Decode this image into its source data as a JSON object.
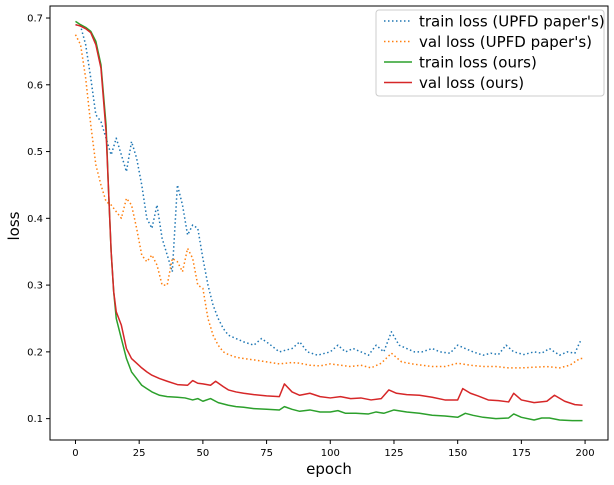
{
  "chart_data": {
    "type": "line",
    "title": "",
    "xlabel": "epoch",
    "ylabel": "loss",
    "xlim": [
      -10,
      209
    ],
    "ylim": [
      0.068,
      0.718
    ],
    "xticks": [
      0,
      25,
      50,
      75,
      100,
      125,
      150,
      175,
      200
    ],
    "yticks": [
      0.1,
      0.2,
      0.3,
      0.4,
      0.5,
      0.6,
      0.7
    ],
    "grid": false,
    "legend_position": "top-right",
    "series": [
      {
        "name": "train loss (UPFD paper's)",
        "color": "#1f77b4",
        "style": "dotted",
        "points": [
          [
            0,
            0.69
          ],
          [
            2,
            0.688
          ],
          [
            4,
            0.66
          ],
          [
            6,
            0.61
          ],
          [
            8,
            0.555
          ],
          [
            10,
            0.545
          ],
          [
            12,
            0.52
          ],
          [
            14,
            0.495
          ],
          [
            16,
            0.52
          ],
          [
            18,
            0.495
          ],
          [
            20,
            0.47
          ],
          [
            22,
            0.515
          ],
          [
            24,
            0.49
          ],
          [
            26,
            0.45
          ],
          [
            28,
            0.4
          ],
          [
            30,
            0.385
          ],
          [
            32,
            0.42
          ],
          [
            34,
            0.37
          ],
          [
            36,
            0.345
          ],
          [
            38,
            0.32
          ],
          [
            40,
            0.45
          ],
          [
            42,
            0.42
          ],
          [
            44,
            0.375
          ],
          [
            46,
            0.39
          ],
          [
            48,
            0.385
          ],
          [
            50,
            0.34
          ],
          [
            52,
            0.3
          ],
          [
            54,
            0.27
          ],
          [
            56,
            0.25
          ],
          [
            58,
            0.235
          ],
          [
            60,
            0.225
          ],
          [
            63,
            0.22
          ],
          [
            66,
            0.215
          ],
          [
            70,
            0.21
          ],
          [
            73,
            0.22
          ],
          [
            76,
            0.212
          ],
          [
            80,
            0.2
          ],
          [
            85,
            0.205
          ],
          [
            88,
            0.215
          ],
          [
            91,
            0.2
          ],
          [
            95,
            0.195
          ],
          [
            100,
            0.2
          ],
          [
            103,
            0.21
          ],
          [
            106,
            0.2
          ],
          [
            109,
            0.205
          ],
          [
            112,
            0.2
          ],
          [
            115,
            0.195
          ],
          [
            118,
            0.21
          ],
          [
            121,
            0.2
          ],
          [
            124,
            0.23
          ],
          [
            127,
            0.21
          ],
          [
            130,
            0.205
          ],
          [
            133,
            0.2
          ],
          [
            136,
            0.2
          ],
          [
            140,
            0.205
          ],
          [
            143,
            0.2
          ],
          [
            147,
            0.198
          ],
          [
            150,
            0.21
          ],
          [
            153,
            0.205
          ],
          [
            156,
            0.2
          ],
          [
            160,
            0.195
          ],
          [
            163,
            0.198
          ],
          [
            166,
            0.196
          ],
          [
            169,
            0.21
          ],
          [
            172,
            0.2
          ],
          [
            176,
            0.196
          ],
          [
            180,
            0.2
          ],
          [
            183,
            0.198
          ],
          [
            186,
            0.205
          ],
          [
            190,
            0.195
          ],
          [
            193,
            0.2
          ],
          [
            196,
            0.198
          ],
          [
            198,
            0.215
          ],
          [
            199,
            0.215
          ]
        ]
      },
      {
        "name": "val loss (UPFD paper's)",
        "color": "#ff7f0e",
        "style": "dotted",
        "points": [
          [
            0,
            0.675
          ],
          [
            2,
            0.66
          ],
          [
            4,
            0.61
          ],
          [
            6,
            0.54
          ],
          [
            8,
            0.48
          ],
          [
            10,
            0.45
          ],
          [
            12,
            0.425
          ],
          [
            14,
            0.42
          ],
          [
            16,
            0.41
          ],
          [
            18,
            0.4
          ],
          [
            20,
            0.43
          ],
          [
            22,
            0.42
          ],
          [
            24,
            0.385
          ],
          [
            26,
            0.345
          ],
          [
            28,
            0.335
          ],
          [
            30,
            0.345
          ],
          [
            32,
            0.33
          ],
          [
            34,
            0.3
          ],
          [
            36,
            0.3
          ],
          [
            38,
            0.34
          ],
          [
            40,
            0.335
          ],
          [
            42,
            0.32
          ],
          [
            44,
            0.355
          ],
          [
            46,
            0.34
          ],
          [
            48,
            0.3
          ],
          [
            50,
            0.295
          ],
          [
            52,
            0.25
          ],
          [
            54,
            0.225
          ],
          [
            56,
            0.21
          ],
          [
            58,
            0.2
          ],
          [
            60,
            0.196
          ],
          [
            63,
            0.192
          ],
          [
            66,
            0.19
          ],
          [
            70,
            0.188
          ],
          [
            75,
            0.185
          ],
          [
            80,
            0.182
          ],
          [
            85,
            0.184
          ],
          [
            88,
            0.183
          ],
          [
            92,
            0.18
          ],
          [
            96,
            0.179
          ],
          [
            100,
            0.182
          ],
          [
            104,
            0.18
          ],
          [
            108,
            0.178
          ],
          [
            112,
            0.18
          ],
          [
            116,
            0.176
          ],
          [
            120,
            0.183
          ],
          [
            124,
            0.198
          ],
          [
            128,
            0.185
          ],
          [
            132,
            0.182
          ],
          [
            136,
            0.18
          ],
          [
            140,
            0.178
          ],
          [
            145,
            0.178
          ],
          [
            150,
            0.183
          ],
          [
            155,
            0.18
          ],
          [
            160,
            0.178
          ],
          [
            165,
            0.178
          ],
          [
            170,
            0.176
          ],
          [
            175,
            0.176
          ],
          [
            180,
            0.177
          ],
          [
            185,
            0.178
          ],
          [
            190,
            0.176
          ],
          [
            194,
            0.18
          ],
          [
            198,
            0.19
          ],
          [
            199,
            0.19
          ]
        ]
      },
      {
        "name": "train loss (ours)",
        "color": "#2ca02c",
        "style": "solid",
        "points": [
          [
            0,
            0.695
          ],
          [
            2,
            0.69
          ],
          [
            4,
            0.686
          ],
          [
            6,
            0.68
          ],
          [
            8,
            0.665
          ],
          [
            10,
            0.63
          ],
          [
            12,
            0.54
          ],
          [
            13,
            0.44
          ],
          [
            14,
            0.35
          ],
          [
            15,
            0.29
          ],
          [
            16,
            0.25
          ],
          [
            18,
            0.22
          ],
          [
            20,
            0.19
          ],
          [
            22,
            0.17
          ],
          [
            24,
            0.16
          ],
          [
            26,
            0.15
          ],
          [
            28,
            0.145
          ],
          [
            30,
            0.14
          ],
          [
            33,
            0.135
          ],
          [
            36,
            0.133
          ],
          [
            40,
            0.132
          ],
          [
            43,
            0.131
          ],
          [
            46,
            0.128
          ],
          [
            48,
            0.13
          ],
          [
            50,
            0.126
          ],
          [
            53,
            0.13
          ],
          [
            56,
            0.124
          ],
          [
            60,
            0.12
          ],
          [
            63,
            0.118
          ],
          [
            66,
            0.117
          ],
          [
            70,
            0.115
          ],
          [
            75,
            0.114
          ],
          [
            80,
            0.113
          ],
          [
            82,
            0.118
          ],
          [
            85,
            0.114
          ],
          [
            88,
            0.111
          ],
          [
            92,
            0.113
          ],
          [
            96,
            0.11
          ],
          [
            100,
            0.11
          ],
          [
            103,
            0.112
          ],
          [
            106,
            0.108
          ],
          [
            110,
            0.108
          ],
          [
            115,
            0.107
          ],
          [
            118,
            0.11
          ],
          [
            121,
            0.108
          ],
          [
            125,
            0.113
          ],
          [
            130,
            0.11
          ],
          [
            135,
            0.108
          ],
          [
            140,
            0.105
          ],
          [
            145,
            0.104
          ],
          [
            150,
            0.102
          ],
          [
            153,
            0.108
          ],
          [
            156,
            0.105
          ],
          [
            160,
            0.102
          ],
          [
            165,
            0.1
          ],
          [
            170,
            0.101
          ],
          [
            172,
            0.107
          ],
          [
            175,
            0.102
          ],
          [
            180,
            0.098
          ],
          [
            183,
            0.101
          ],
          [
            186,
            0.101
          ],
          [
            190,
            0.098
          ],
          [
            195,
            0.097
          ],
          [
            199,
            0.097
          ]
        ]
      },
      {
        "name": "val loss (ours)",
        "color": "#d62728",
        "style": "solid",
        "points": [
          [
            0,
            0.69
          ],
          [
            2,
            0.688
          ],
          [
            4,
            0.684
          ],
          [
            6,
            0.678
          ],
          [
            8,
            0.66
          ],
          [
            10,
            0.625
          ],
          [
            12,
            0.53
          ],
          [
            13,
            0.44
          ],
          [
            14,
            0.35
          ],
          [
            15,
            0.29
          ],
          [
            16,
            0.26
          ],
          [
            18,
            0.24
          ],
          [
            20,
            0.205
          ],
          [
            22,
            0.19
          ],
          [
            24,
            0.183
          ],
          [
            26,
            0.176
          ],
          [
            28,
            0.17
          ],
          [
            30,
            0.165
          ],
          [
            33,
            0.16
          ],
          [
            36,
            0.156
          ],
          [
            40,
            0.151
          ],
          [
            44,
            0.15
          ],
          [
            46,
            0.157
          ],
          [
            48,
            0.153
          ],
          [
            50,
            0.152
          ],
          [
            53,
            0.15
          ],
          [
            55,
            0.156
          ],
          [
            58,
            0.148
          ],
          [
            60,
            0.143
          ],
          [
            63,
            0.14
          ],
          [
            66,
            0.138
          ],
          [
            70,
            0.136
          ],
          [
            75,
            0.134
          ],
          [
            80,
            0.133
          ],
          [
            82,
            0.152
          ],
          [
            85,
            0.14
          ],
          [
            88,
            0.135
          ],
          [
            92,
            0.138
          ],
          [
            96,
            0.133
          ],
          [
            100,
            0.131
          ],
          [
            104,
            0.133
          ],
          [
            108,
            0.13
          ],
          [
            112,
            0.131
          ],
          [
            116,
            0.128
          ],
          [
            120,
            0.13
          ],
          [
            123,
            0.143
          ],
          [
            126,
            0.138
          ],
          [
            130,
            0.136
          ],
          [
            135,
            0.135
          ],
          [
            140,
            0.132
          ],
          [
            145,
            0.128
          ],
          [
            150,
            0.128
          ],
          [
            152,
            0.145
          ],
          [
            155,
            0.138
          ],
          [
            158,
            0.134
          ],
          [
            162,
            0.128
          ],
          [
            166,
            0.127
          ],
          [
            170,
            0.125
          ],
          [
            172,
            0.138
          ],
          [
            175,
            0.128
          ],
          [
            180,
            0.124
          ],
          [
            185,
            0.126
          ],
          [
            188,
            0.135
          ],
          [
            192,
            0.126
          ],
          [
            196,
            0.121
          ],
          [
            199,
            0.12
          ]
        ]
      }
    ]
  }
}
